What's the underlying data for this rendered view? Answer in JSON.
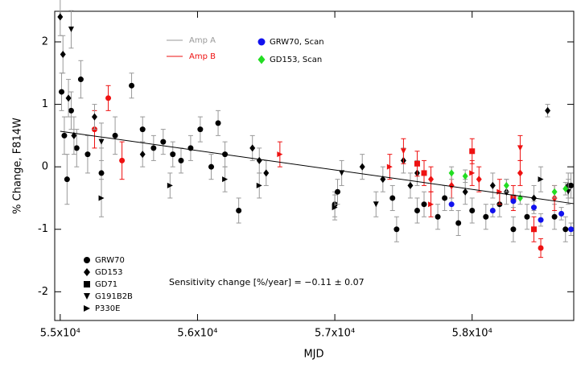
{
  "chart_data": {
    "type": "scatter",
    "xlabel": "MJD",
    "ylabel": "% Change, F814W",
    "annotation": "Sensitivity change [%/year] = −0.11 ± 0.07",
    "xlim": [
      54960,
      58740
    ],
    "ylim": [
      -2.46,
      2.49
    ],
    "xticks": [
      {
        "value": 55000,
        "label": "5.5x10⁴"
      },
      {
        "value": 56000,
        "label": "5.6x10⁴"
      },
      {
        "value": 57000,
        "label": "5.7x10⁴"
      },
      {
        "value": 58000,
        "label": "5.8x10⁴"
      }
    ],
    "yticks": [
      -2,
      -1,
      0,
      1,
      2
    ],
    "amps": [
      {
        "name": "Amp A",
        "color": "#999999"
      },
      {
        "name": "Amp B",
        "color": "#ee1111"
      }
    ],
    "fit": {
      "x": [
        55000,
        58740
      ],
      "values": [
        0.57,
        -0.59
      ]
    },
    "series": [
      {
        "name": "GRW70",
        "marker": "circle",
        "color": "#000000",
        "x": [
          55010,
          55030,
          55050,
          55080,
          55120,
          55150,
          55200,
          55250,
          55300,
          55350,
          55400,
          55450,
          55520,
          55600,
          55680,
          55750,
          55820,
          55880,
          55950,
          56020,
          56100,
          56150,
          56200,
          56300,
          57000,
          57020,
          57420,
          57450,
          57600,
          57650,
          57750,
          57800,
          57900,
          58000,
          58100,
          58200,
          58300,
          58400,
          58500,
          58600,
          58680,
          58720
        ],
        "values": [
          1.2,
          0.5,
          -0.2,
          0.9,
          0.3,
          1.4,
          0.2,
          0.6,
          -0.1,
          1.1,
          0.5,
          0.1,
          1.3,
          0.6,
          0.3,
          0.4,
          0.2,
          0.1,
          0.3,
          0.6,
          0.0,
          0.7,
          0.2,
          -0.7,
          -0.6,
          -0.4,
          -0.5,
          -1.0,
          -0.7,
          -0.6,
          -0.8,
          -0.5,
          -0.9,
          -0.7,
          -0.8,
          -0.6,
          -1.0,
          -0.8,
          -1.3,
          -0.8,
          -1.0,
          -0.3
        ],
        "errors": [
          0.3,
          0.3,
          0.4,
          0.3,
          0.3,
          0.3,
          0.3,
          0.3,
          0.4,
          0.2,
          0.3,
          0.3,
          0.2,
          0.2,
          0.2,
          0.2,
          0.2,
          0.2,
          0.2,
          0.2,
          0.2,
          0.2,
          0.2,
          0.2,
          0.2,
          0.2,
          0.2,
          0.2,
          0.2,
          0.2,
          0.2,
          0.2,
          0.2,
          0.2,
          0.2,
          0.2,
          0.2,
          0.2,
          0.15,
          0.2,
          0.2,
          0.2
        ],
        "amp": [
          0,
          0,
          0,
          0,
          0,
          0,
          0,
          1,
          0,
          1,
          0,
          1,
          0,
          0,
          0,
          0,
          0,
          0,
          0,
          0,
          0,
          0,
          0,
          0,
          0,
          0,
          0,
          0,
          0,
          0,
          0,
          0,
          0,
          0,
          0,
          0,
          0,
          0,
          1,
          0,
          0,
          0
        ]
      },
      {
        "name": "GD153",
        "marker": "diamond",
        "color": "#000000",
        "x": [
          55000,
          55020,
          55060,
          55100,
          55250,
          55600,
          56400,
          56450,
          56500,
          57200,
          57350,
          57500,
          57550,
          57600,
          57700,
          57850,
          57950,
          58050,
          58150,
          58250,
          58350,
          58450,
          58550,
          58600,
          58700
        ],
        "values": [
          2.4,
          1.8,
          1.1,
          0.5,
          0.8,
          0.2,
          0.3,
          0.1,
          -0.1,
          0.0,
          -0.2,
          0.1,
          -0.3,
          -0.1,
          -0.2,
          -0.3,
          -0.4,
          -0.2,
          -0.3,
          -0.4,
          -0.1,
          -0.5,
          0.9,
          -0.5,
          -0.3
        ],
        "errors": [
          0.3,
          0.3,
          0.3,
          0.3,
          0.2,
          0.2,
          0.2,
          0.2,
          0.2,
          0.2,
          0.2,
          0.2,
          0.2,
          0.2,
          0.2,
          0.2,
          0.2,
          0.2,
          0.2,
          0.2,
          0.2,
          0.2,
          0.1,
          0.2,
          0.2
        ],
        "amp": [
          0,
          0,
          0,
          0,
          0,
          0,
          0,
          0,
          0,
          0,
          0,
          0,
          0,
          0,
          1,
          1,
          0,
          1,
          0,
          0,
          1,
          0,
          0,
          1,
          0
        ]
      },
      {
        "name": "GD71",
        "marker": "square",
        "color": "#000000",
        "x": [
          57600,
          57650,
          58000,
          58300,
          58450
        ],
        "values": [
          0.05,
          -0.1,
          0.25,
          -0.5,
          -1.0
        ],
        "errors": [
          0.2,
          0.2,
          0.2,
          0.2,
          0.2
        ],
        "amp": [
          1,
          1,
          1,
          1,
          1
        ]
      },
      {
        "name": "G191B2B",
        "marker": "triangle-down",
        "color": "#000000",
        "x": [
          55080,
          55300,
          57050,
          57300,
          57500,
          58350,
          58700
        ],
        "values": [
          2.2,
          0.4,
          -0.1,
          -0.6,
          0.25,
          0.3,
          -0.4
        ],
        "errors": [
          0.3,
          0.3,
          0.2,
          0.2,
          0.2,
          0.2,
          0.2
        ],
        "amp": [
          0,
          0,
          0,
          0,
          1,
          1,
          0
        ]
      },
      {
        "name": "P330E",
        "marker": "triangle-right",
        "color": "#000000",
        "x": [
          55300,
          55800,
          56200,
          56450,
          56600,
          57000,
          57400,
          57700,
          58000,
          58200,
          58500
        ],
        "values": [
          -0.5,
          -0.3,
          -0.2,
          -0.3,
          0.2,
          -0.65,
          0.0,
          -0.6,
          -0.1,
          -0.4,
          -0.2
        ],
        "errors": [
          0.3,
          0.2,
          0.2,
          0.2,
          0.2,
          0.2,
          0.2,
          0.2,
          0.2,
          0.2,
          0.2
        ],
        "amp": [
          0,
          0,
          0,
          0,
          1,
          0,
          1,
          1,
          1,
          1,
          0
        ]
      },
      {
        "name": "GRW70, Scan",
        "marker": "circle",
        "color": "#1111ee",
        "x": [
          57850,
          58150,
          58300,
          58450,
          58500,
          58650,
          58720
        ],
        "values": [
          -0.6,
          -0.7,
          -0.55,
          -0.65,
          -0.85,
          -0.75,
          -1.0
        ],
        "errors": [
          0.1,
          0.1,
          0.1,
          0.1,
          0.1,
          0.1,
          0.1
        ],
        "amp": [
          0,
          0,
          0,
          0,
          0,
          0,
          0
        ]
      },
      {
        "name": "GD153, Scan",
        "marker": "diamond",
        "color": "#22dd22",
        "x": [
          57850,
          57950,
          58250,
          58350,
          58600,
          58680
        ],
        "values": [
          -0.1,
          -0.15,
          -0.3,
          -0.5,
          -0.4,
          -0.35
        ],
        "errors": [
          0.1,
          0.1,
          0.1,
          0.1,
          0.1,
          0.1
        ],
        "amp": [
          0,
          0,
          0,
          0,
          0,
          0
        ]
      }
    ]
  }
}
